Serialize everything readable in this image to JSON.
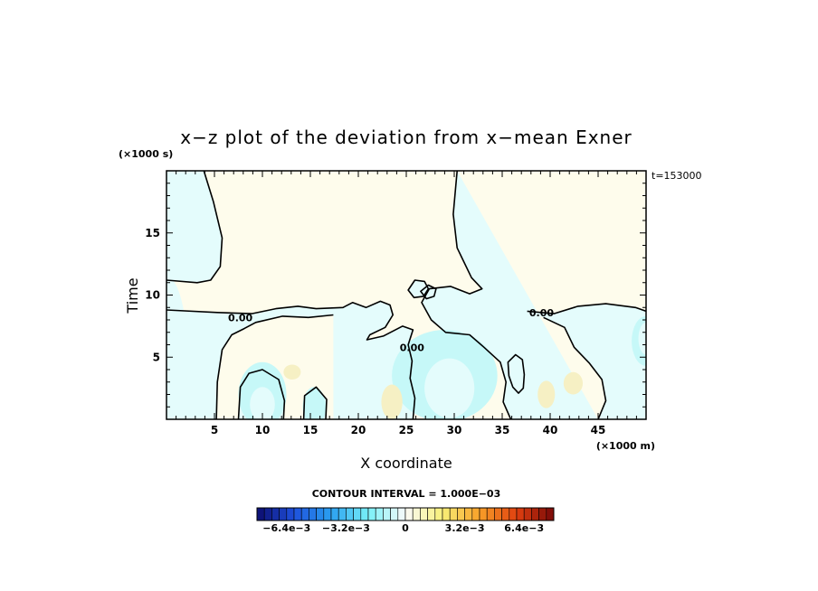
{
  "chart_data": {
    "type": "heatmap",
    "title": "x−z plot of the deviation from x−mean Exner",
    "xlabel": "X coordinate",
    "ylabel": "Time",
    "x_unit": "(×1000 m)",
    "y_unit": "(×1000 s)",
    "time_note": "t=153000",
    "xlim": [
      0,
      50
    ],
    "ylim": [
      0,
      20
    ],
    "x_ticks": [
      5,
      10,
      15,
      20,
      25,
      30,
      35,
      40,
      45
    ],
    "y_ticks": [
      5,
      10,
      15
    ],
    "contour_interval_text": "CONTOUR INTERVAL = 1.000E−03",
    "zero_contour_labels": [
      {
        "text": "0.00",
        "x": 7.7,
        "y": 7.9
      },
      {
        "text": "0.00",
        "x": 25.6,
        "y": 5.5
      },
      {
        "text": "0.00",
        "x": 39.1,
        "y": 8.3
      }
    ],
    "zero_contours": [
      [
        [
          3.9,
          20
        ],
        [
          4.9,
          17.5
        ],
        [
          5.8,
          14.6
        ],
        [
          5.6,
          12.3
        ],
        [
          4.6,
          11.2
        ],
        [
          3.2,
          11.0
        ],
        [
          0,
          11.2
        ]
      ],
      [
        [
          30.3,
          20
        ],
        [
          29.9,
          16.5
        ],
        [
          30.3,
          13.8
        ],
        [
          31.8,
          11.4
        ],
        [
          32.9,
          10.5
        ],
        [
          31.6,
          10.1
        ],
        [
          29.6,
          10.7
        ],
        [
          27.4,
          10.5
        ],
        [
          26.6,
          9.4
        ],
        [
          27.6,
          8.0
        ],
        [
          29.1,
          7.0
        ],
        [
          31.6,
          6.8
        ],
        [
          33.1,
          5.8
        ],
        [
          34.8,
          4.6
        ],
        [
          35.4,
          3.0
        ],
        [
          35.1,
          1.4
        ],
        [
          35.9,
          0
        ]
      ],
      [
        [
          0,
          8.8
        ],
        [
          5.3,
          8.6
        ],
        [
          8.9,
          8.5
        ],
        [
          11.4,
          8.9
        ],
        [
          13.7,
          9.1
        ],
        [
          15.6,
          8.9
        ],
        [
          18.4,
          9.0
        ],
        [
          19.4,
          9.4
        ],
        [
          20.8,
          9.0
        ],
        [
          22.3,
          9.5
        ],
        [
          23.3,
          9.2
        ],
        [
          23.6,
          8.4
        ],
        [
          22.8,
          7.4
        ],
        [
          21.2,
          6.8
        ],
        [
          20.9,
          6.4
        ],
        [
          22.6,
          6.7
        ],
        [
          24.6,
          7.5
        ],
        [
          25.7,
          7.2
        ],
        [
          25.2,
          6.0
        ],
        [
          25.6,
          4.7
        ],
        [
          25.4,
          3.3
        ],
        [
          25.9,
          1.7
        ],
        [
          25.7,
          0
        ]
      ],
      [
        [
          5.2,
          0
        ],
        [
          5.3,
          3.0
        ],
        [
          5.8,
          5.6
        ],
        [
          6.8,
          6.8
        ],
        [
          8.1,
          7.3
        ],
        [
          9.3,
          7.8
        ],
        [
          12.1,
          8.3
        ],
        [
          14.8,
          8.2
        ],
        [
          17.4,
          8.4
        ]
      ],
      [
        [
          7.5,
          0
        ],
        [
          7.7,
          2.6
        ],
        [
          8.6,
          3.7
        ],
        [
          10.0,
          4.0
        ],
        [
          11.7,
          3.2
        ],
        [
          12.3,
          1.5
        ],
        [
          12.2,
          0
        ]
      ],
      [
        [
          14.3,
          0
        ],
        [
          14.4,
          1.9
        ],
        [
          15.6,
          2.6
        ],
        [
          16.7,
          1.6
        ],
        [
          16.6,
          0
        ]
      ],
      [
        [
          37.6,
          8.7
        ],
        [
          40.4,
          8.5
        ],
        [
          42.9,
          9.1
        ],
        [
          45.8,
          9.3
        ],
        [
          48.9,
          9.0
        ],
        [
          50,
          8.7
        ]
      ],
      [
        [
          39.3,
          8.2
        ],
        [
          41.5,
          7.4
        ],
        [
          42.5,
          5.8
        ],
        [
          44.1,
          4.5
        ],
        [
          45.4,
          3.2
        ],
        [
          45.8,
          1.5
        ],
        [
          45.0,
          0
        ]
      ]
    ],
    "closed_contours": [
      [
        [
          35.6,
          4.6
        ],
        [
          36.4,
          5.2
        ],
        [
          37.1,
          4.8
        ],
        [
          37.3,
          3.6
        ],
        [
          37.2,
          2.5
        ],
        [
          36.7,
          2.1
        ],
        [
          36.1,
          2.6
        ],
        [
          35.7,
          3.5
        ]
      ],
      [
        [
          25.2,
          10.4
        ],
        [
          25.9,
          11.2
        ],
        [
          26.9,
          11.1
        ],
        [
          27.3,
          10.5
        ],
        [
          26.8,
          9.9
        ],
        [
          25.8,
          9.8
        ]
      ],
      [
        [
          26.5,
          10.3
        ],
        [
          27.3,
          10.8
        ],
        [
          28.1,
          10.5
        ],
        [
          27.9,
          9.9
        ],
        [
          27.1,
          9.7
        ]
      ]
    ],
    "negative_regions": [
      {
        "cx": 0,
        "cy": 5.0,
        "rx": 2.2,
        "ry": 6.5
      },
      {
        "cx": 29.0,
        "cy": 3.5,
        "rx": 5.5,
        "ry": 3.7
      },
      {
        "cx": 29.5,
        "cy": 2.5,
        "rx": 2.6,
        "ry": 2.4
      },
      {
        "cx": 10.0,
        "cy": 2.0,
        "rx": 2.5,
        "ry": 2.6
      },
      {
        "cx": 10.0,
        "cy": 1.2,
        "rx": 1.3,
        "ry": 1.4
      },
      {
        "cx": 15.4,
        "cy": 1.0,
        "rx": 1.2,
        "ry": 1.6
      },
      {
        "cx": 36.5,
        "cy": 3.7,
        "rx": 1.0,
        "ry": 1.6
      },
      {
        "cx": 50,
        "cy": 6.3,
        "rx": 1.5,
        "ry": 2.0
      },
      {
        "cx": 50,
        "cy": 6.5,
        "rx": 0.8,
        "ry": 1.3
      }
    ],
    "positive_regions": [
      {
        "cx": 13.1,
        "cy": 3.8,
        "rx": 0.9,
        "ry": 0.6
      },
      {
        "cx": 23.5,
        "cy": 1.4,
        "rx": 1.1,
        "ry": 1.4
      },
      {
        "cx": 39.6,
        "cy": 2.0,
        "rx": 0.9,
        "ry": 1.1
      },
      {
        "cx": 42.4,
        "cy": 2.9,
        "rx": 1.0,
        "ry": 0.9
      }
    ],
    "colorbar": {
      "min": -0.008,
      "max": 0.008,
      "step": 0.0004,
      "tick_labels": [
        {
          "text": "−6.4e−3",
          "value": -0.0064
        },
        {
          "text": "−3.2e−3",
          "value": -0.0032
        },
        {
          "text": "0",
          "value": 0
        },
        {
          "text": "3.2e−3",
          "value": 0.0032
        },
        {
          "text": "6.4e−3",
          "value": 0.0064
        }
      ],
      "color_stops": [
        {
          "v": -1.0,
          "c": "#0c0c6e"
        },
        {
          "v": -0.75,
          "c": "#1e50dc"
        },
        {
          "v": -0.5,
          "c": "#2aa0f0"
        },
        {
          "v": -0.25,
          "c": "#78f0f8"
        },
        {
          "v": 0.0,
          "c": "#fafafa"
        },
        {
          "v": 0.25,
          "c": "#f8f078"
        },
        {
          "v": 0.5,
          "c": "#f8a028"
        },
        {
          "v": 0.75,
          "c": "#e04010"
        },
        {
          "v": 1.0,
          "c": "#780808"
        }
      ]
    },
    "colors": {
      "background_positive": "#fefcec",
      "background_negative": "#e4fcfc",
      "negative_strong": "#c6f8f8",
      "positive_strong": "#f6f0c4",
      "contour_line": "#000000"
    }
  }
}
